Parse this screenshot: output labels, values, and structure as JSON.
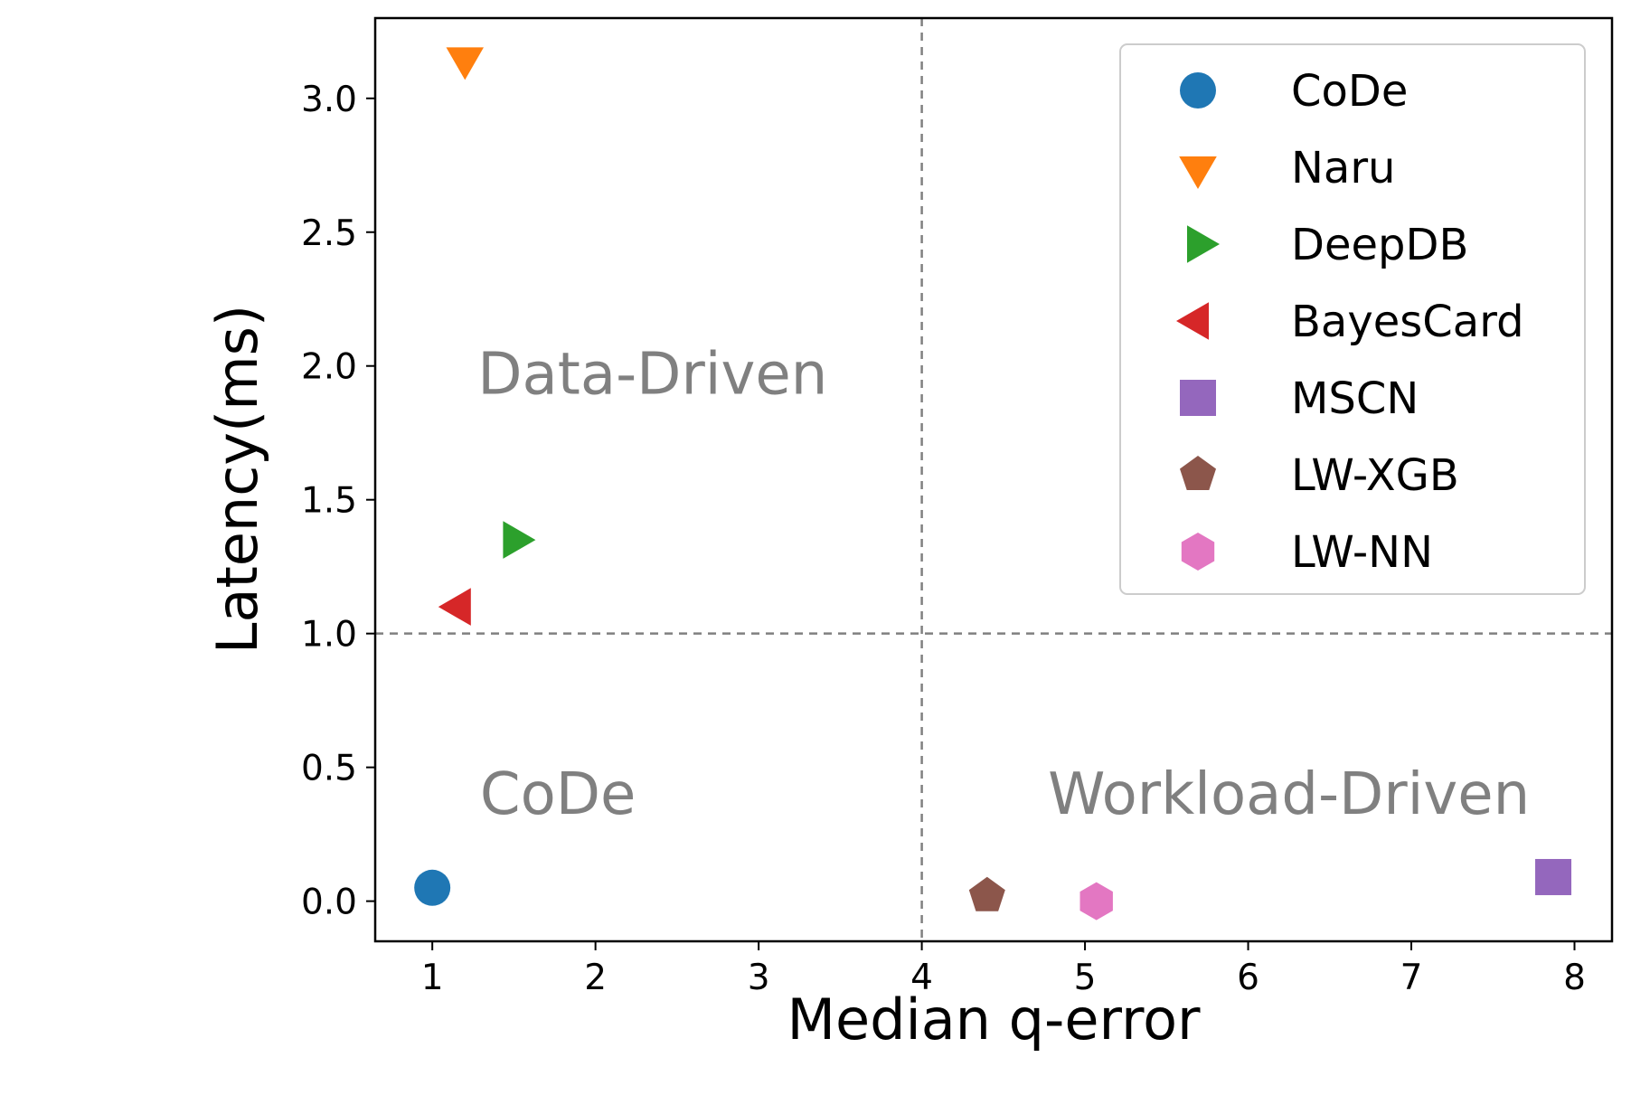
{
  "chart_data": {
    "type": "scatter",
    "xlabel": "Median q-error",
    "ylabel": "Latency(ms)",
    "xlim": [
      0.65,
      8.23
    ],
    "ylim": [
      -0.15,
      3.3
    ],
    "xticks": [
      1,
      2,
      3,
      4,
      5,
      6,
      7,
      8
    ],
    "yticks": [
      0.0,
      0.5,
      1.0,
      1.5,
      2.0,
      2.5,
      3.0
    ],
    "xtick_labels": [
      "1",
      "2",
      "3",
      "4",
      "5",
      "6",
      "7",
      "8"
    ],
    "ytick_labels": [
      "0.0",
      "0.5",
      "1.0",
      "1.5",
      "2.0",
      "2.5",
      "3.0"
    ],
    "grid": false,
    "reference_lines": {
      "x": 4,
      "y": 1.0,
      "style": "dashed",
      "color": "#808080"
    },
    "region_labels": [
      {
        "text": "Data-Driven"
      },
      {
        "text": "CoDe"
      },
      {
        "text": "Workload-Driven"
      }
    ],
    "legend_position": "top-right",
    "series": [
      {
        "name": "CoDe",
        "marker": "circle",
        "color": "#1f77b4",
        "x": 1.0,
        "y": 0.05
      },
      {
        "name": "Naru",
        "marker": "triangle-down",
        "color": "#ff7f0e",
        "x": 1.2,
        "y": 3.15
      },
      {
        "name": "DeepDB",
        "marker": "triangle-right",
        "color": "#2ca02c",
        "x": 1.5,
        "y": 1.35
      },
      {
        "name": "BayesCard",
        "marker": "triangle-left",
        "color": "#d62728",
        "x": 1.17,
        "y": 1.1
      },
      {
        "name": "MSCN",
        "marker": "square",
        "color": "#9467bd",
        "x": 7.87,
        "y": 0.09
      },
      {
        "name": "LW-XGB",
        "marker": "pentagon",
        "color": "#8c564b",
        "x": 4.4,
        "y": 0.02
      },
      {
        "name": "LW-NN",
        "marker": "hexagon",
        "color": "#e377c2",
        "x": 5.07,
        "y": 0.0
      }
    ]
  }
}
